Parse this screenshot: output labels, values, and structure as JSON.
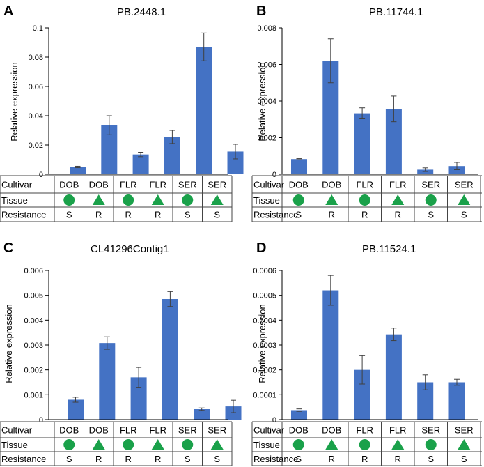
{
  "panels": [
    {
      "letter": "A",
      "title": "PB.2448.1",
      "ylabel": "Relative expression",
      "row_labels": [
        "Cultivar",
        "Tissue",
        "Resistance"
      ],
      "cultivar": [
        "DOB",
        "DOB",
        "FLR",
        "FLR",
        "SER",
        "SER"
      ],
      "tissue": [
        "circle",
        "triangle",
        "circle",
        "triangle",
        "circle",
        "triangle"
      ],
      "resistance": [
        "S",
        "R",
        "R",
        "R",
        "S",
        "S"
      ]
    },
    {
      "letter": "B",
      "title": "PB.11744.1",
      "ylabel": "Relative expression",
      "row_labels": [
        "Cultivar",
        "Tissue",
        "Resistance"
      ],
      "cultivar": [
        "DOB",
        "DOB",
        "FLR",
        "FLR",
        "SER",
        "SER"
      ],
      "tissue": [
        "circle",
        "triangle",
        "circle",
        "triangle",
        "circle",
        "triangle"
      ],
      "resistance": [
        "S",
        "R",
        "R",
        "R",
        "S",
        "S"
      ]
    },
    {
      "letter": "C",
      "title": "CL41296Contig1",
      "ylabel": "Relative expression",
      "row_labels": [
        "Cultivar",
        "Tissue",
        "Resistance"
      ],
      "cultivar": [
        "DOB",
        "DOB",
        "FLR",
        "FLR",
        "SER",
        "SER"
      ],
      "tissue": [
        "circle",
        "triangle",
        "circle",
        "triangle",
        "circle",
        "triangle"
      ],
      "resistance": [
        "S",
        "R",
        "R",
        "R",
        "S",
        "S"
      ]
    },
    {
      "letter": "D",
      "title": "PB.11524.1",
      "ylabel": "Relative expression",
      "row_labels": [
        "Cultivar",
        "Tissue",
        "Resistance"
      ],
      "cultivar": [
        "DOB",
        "DOB",
        "FLR",
        "FLR",
        "SER",
        "SER"
      ],
      "tissue": [
        "circle",
        "triangle",
        "circle",
        "triangle",
        "circle",
        "triangle"
      ],
      "resistance": [
        "S",
        "R",
        "R",
        "R",
        "S",
        "S"
      ]
    }
  ],
  "colors": {
    "bar": "#4472c4",
    "marker": "#1aa14a",
    "axis": "#000000",
    "error": "#404040",
    "table_border": "#444444"
  },
  "chart_data": [
    {
      "type": "bar",
      "title": "PB.2448.1",
      "ylabel": "Relative expression",
      "xlabel": "",
      "categories": [
        "DOB",
        "DOB",
        "FLR",
        "FLR",
        "SER",
        "SER"
      ],
      "values": [
        0.005,
        0.0335,
        0.0135,
        0.0255,
        0.087,
        0.0155
      ],
      "errors": [
        0.0005,
        0.0065,
        0.0015,
        0.0045,
        0.0095,
        0.005
      ],
      "ylim": [
        0,
        0.1
      ],
      "yticks": [
        0,
        0.02,
        0.04,
        0.06,
        0.08,
        0.1
      ],
      "ytick_labels": [
        "0",
        "0.02",
        "0.04",
        "0.06",
        "0.08",
        "0.1"
      ]
    },
    {
      "type": "bar",
      "title": "PB.11744.1",
      "ylabel": "Relative expression",
      "xlabel": "",
      "categories": [
        "DOB",
        "DOB",
        "FLR",
        "FLR",
        "SER",
        "SER"
      ],
      "values": [
        0.00083,
        0.0062,
        0.00333,
        0.00357,
        0.00025,
        0.00045
      ],
      "errors": [
        3e-05,
        0.0012,
        0.0003,
        0.0007,
        0.0001,
        0.0002
      ],
      "ylim": [
        0,
        0.008
      ],
      "yticks": [
        0,
        0.002,
        0.004,
        0.006,
        0.008
      ],
      "ytick_labels": [
        "0",
        "0.002",
        "0.004",
        "0.006",
        "0.008"
      ]
    },
    {
      "type": "bar",
      "title": "CL41296Contig1",
      "ylabel": "Relative expression",
      "xlabel": "",
      "categories": [
        "DOB",
        "DOB",
        "FLR",
        "FLR",
        "SER",
        "SER"
      ],
      "values": [
        0.0008,
        0.00308,
        0.0017,
        0.00485,
        0.00042,
        0.00053
      ],
      "errors": [
        0.0001,
        0.00025,
        0.0004,
        0.0003,
        5e-05,
        0.00025
      ],
      "ylim": [
        0,
        0.006
      ],
      "yticks": [
        0,
        0.001,
        0.002,
        0.003,
        0.004,
        0.005,
        0.006
      ],
      "ytick_labels": [
        "0",
        "0.001",
        "0.002",
        "0.003",
        "0.004",
        "0.005",
        "0.006"
      ]
    },
    {
      "type": "bar",
      "title": "PB.11524.1",
      "ylabel": "Relative expression",
      "xlabel": "",
      "categories": [
        "DOB",
        "DOB",
        "FLR",
        "FLR",
        "SER",
        "SER"
      ],
      "values": [
        3.8e-05,
        0.00052,
        0.0002,
        0.000343,
        0.00015,
        0.00015
      ],
      "errors": [
        5e-06,
        6e-05,
        5.7e-05,
        2.5e-05,
        3e-05,
        1.2e-05
      ],
      "ylim": [
        0,
        0.0006
      ],
      "yticks": [
        0,
        0.0001,
        0.0002,
        0.0003,
        0.0004,
        0.0005,
        0.0006
      ],
      "ytick_labels": [
        "0",
        "0.0001",
        "0.0002",
        "0.0003",
        "0.0004",
        "0.0005",
        "0.0006"
      ]
    }
  ]
}
